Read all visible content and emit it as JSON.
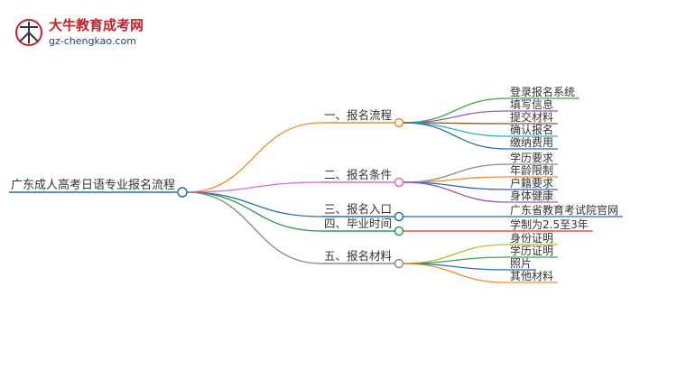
{
  "header": {
    "site_name": "大牛教育成考网",
    "domain": "gz-chengkao.com"
  },
  "root": "广东成人高考日语专业报名流程",
  "branches": [
    {
      "label": "一、报名流程",
      "children": [
        "登录报名系统",
        "填写信息",
        "提交材料",
        "确认报名",
        "缴纳费用"
      ]
    },
    {
      "label": "二、报名条件",
      "children": [
        "学历要求",
        "年龄限制",
        "户籍要求",
        "身体健康"
      ]
    },
    {
      "label": "三、报名入口",
      "children": [
        "广东省教育考试院官网"
      ]
    },
    {
      "label": "四、毕业时间",
      "children": [
        "学制为2.5至3年"
      ]
    },
    {
      "label": "五、报名材料",
      "children": [
        "身份证明",
        "学历证明",
        "照片",
        "其他材料"
      ]
    }
  ]
}
